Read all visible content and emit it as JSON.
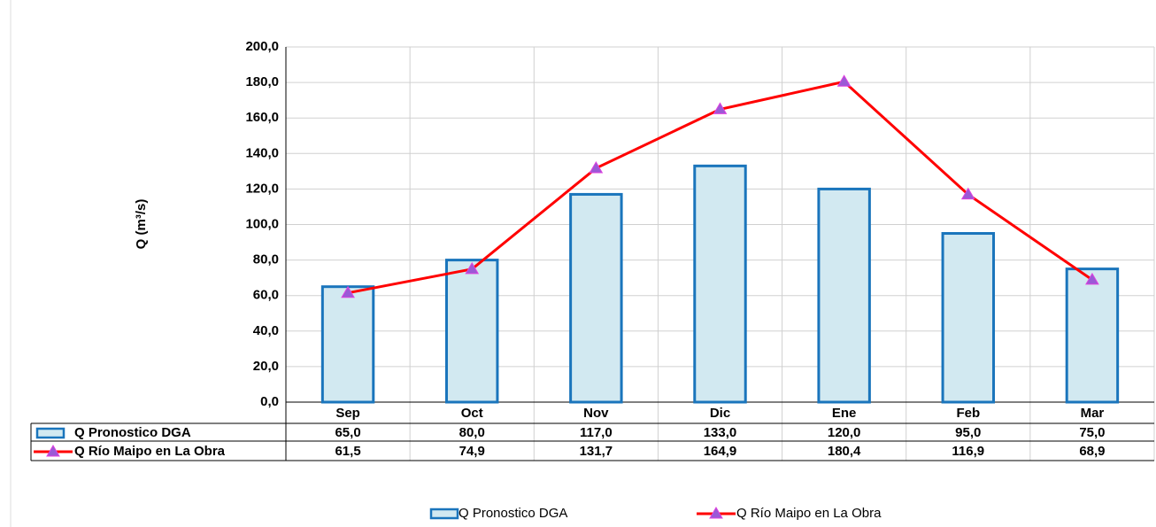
{
  "chart_data": {
    "type": "bar_line_table",
    "y_label": "Q (m³/s)",
    "categories": [
      "Sep",
      "Oct",
      "Nov",
      "Dic",
      "Ene",
      "Feb",
      "Mar"
    ],
    "series": [
      {
        "name": "Q Pronostico DGA",
        "type": "bar",
        "color": "#1a75bc",
        "fill": "#d2e9f1",
        "values": [
          65.0,
          80.0,
          117.0,
          133.0,
          120.0,
          95.0,
          75.0
        ],
        "value_labels": [
          "65,0",
          "80,0",
          "117,0",
          "133,0",
          "120,0",
          "95,0",
          "75,0"
        ]
      },
      {
        "name": "Q Río Maipo en La Obra",
        "type": "line",
        "color": "#ff0000",
        "marker_color": "#9b59d6",
        "values": [
          61.5,
          74.9,
          131.7,
          164.9,
          180.4,
          116.9,
          68.9
        ],
        "value_labels": [
          "61,5",
          "74,9",
          "131,7",
          "164,9",
          "180,4",
          "116,9",
          "68,9"
        ]
      }
    ],
    "ylim": [
      0,
      200
    ],
    "yticks": [
      {
        "value": 0,
        "label": "0,0"
      },
      {
        "value": 20,
        "label": "20,0"
      },
      {
        "value": 40,
        "label": "40,0"
      },
      {
        "value": 60,
        "label": "60,0"
      },
      {
        "value": 80,
        "label": "80,0"
      },
      {
        "value": 100,
        "label": "100,0"
      },
      {
        "value": 120,
        "label": "120,0"
      },
      {
        "value": 140,
        "label": "140,0"
      },
      {
        "value": 160,
        "label": "160,0"
      },
      {
        "value": 180,
        "label": "180,0"
      },
      {
        "value": 200,
        "label": "200,0"
      }
    ],
    "grid": true
  }
}
